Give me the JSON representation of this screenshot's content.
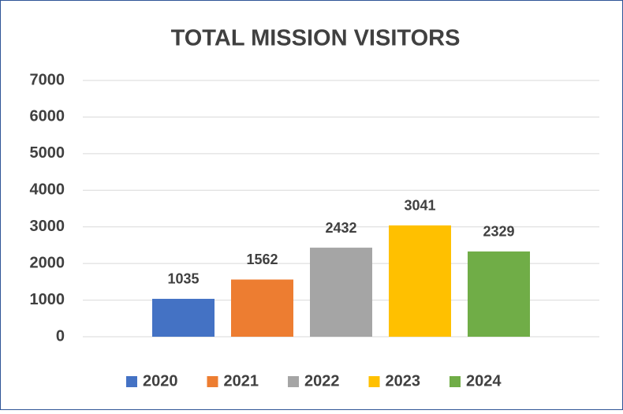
{
  "chart_data": {
    "type": "bar",
    "title": "TOTAL MISSION VISITORS",
    "categories": [
      null
    ],
    "series": [
      {
        "name": "2020",
        "color": "#4472c4",
        "values": [
          1035
        ]
      },
      {
        "name": "2021",
        "color": "#ed7d31",
        "values": [
          1562
        ]
      },
      {
        "name": "2022",
        "color": "#a5a5a5",
        "values": [
          2432
        ]
      },
      {
        "name": "2023",
        "color": "#ffc000",
        "values": [
          3041
        ]
      },
      {
        "name": "2024",
        "color": "#70ad47",
        "values": [
          2329
        ]
      }
    ],
    "ylim": [
      0,
      7000
    ],
    "yticks": [
      0,
      1000,
      2000,
      3000,
      4000,
      5000,
      6000,
      7000
    ],
    "grid": true,
    "legend": "bottom"
  }
}
